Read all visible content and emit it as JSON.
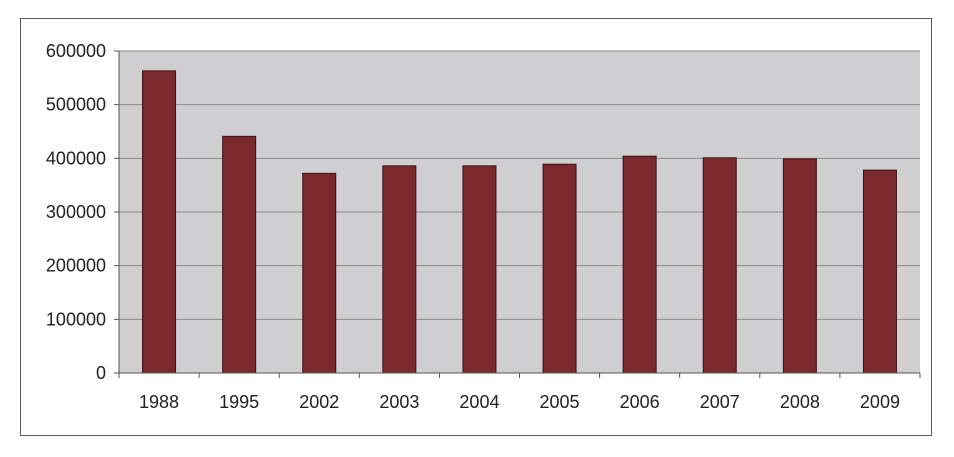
{
  "chart_data": {
    "type": "bar",
    "categories": [
      "1988",
      "1995",
      "2002",
      "2003",
      "2004",
      "2005",
      "2006",
      "2007",
      "2008",
      "2009"
    ],
    "values": [
      563000,
      441000,
      372000,
      386000,
      386000,
      389000,
      404000,
      401000,
      399000,
      378000
    ],
    "ylim": [
      0,
      600000
    ],
    "yticks": [
      "0",
      "100000",
      "200000",
      "300000",
      "400000",
      "500000",
      "600000"
    ],
    "grid": true,
    "legend": "none",
    "colors": {
      "bar_fill": "#7a2a2d",
      "bar_stroke": "#3a1214",
      "plot_background": "#cfcfd1",
      "gridline": "#8a8a8a",
      "axis": "#555555"
    }
  }
}
